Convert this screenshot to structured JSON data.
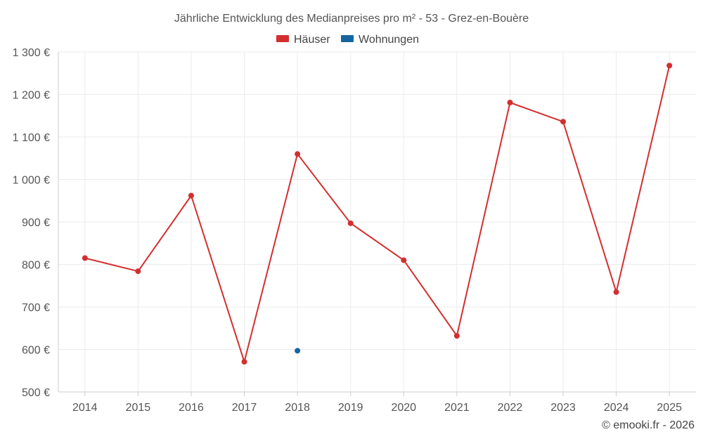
{
  "chart_data": {
    "type": "line",
    "title": "Jährliche Entwicklung des Medianpreises pro m² - 53 - Grez-en-Bouère",
    "categories": [
      "2014",
      "2015",
      "2016",
      "2017",
      "2018",
      "2019",
      "2020",
      "2021",
      "2022",
      "2023",
      "2024",
      "2025"
    ],
    "series": [
      {
        "name": "Häuser",
        "color": "#d32f2f",
        "values": [
          815,
          784,
          962,
          571,
          1060,
          897,
          810,
          632,
          1181,
          1136,
          735,
          1268
        ]
      },
      {
        "name": "Wohnungen",
        "color": "#1565a0",
        "values": [
          null,
          null,
          null,
          null,
          597,
          null,
          null,
          null,
          null,
          null,
          null,
          null
        ]
      }
    ],
    "ylim": [
      500,
      1300
    ],
    "yticks": [
      500,
      600,
      700,
      800,
      900,
      1000,
      1100,
      1200,
      1300
    ],
    "ytick_labels": [
      "500 €",
      "600 €",
      "700 €",
      "800 €",
      "900 €",
      "1 000 €",
      "1 100 €",
      "1 200 €",
      "1 300 €"
    ],
    "xlabel": "",
    "ylabel": "",
    "grid": true,
    "legend_position": "top-center"
  },
  "footer": {
    "credit": "© emooki.fr - 2026"
  }
}
